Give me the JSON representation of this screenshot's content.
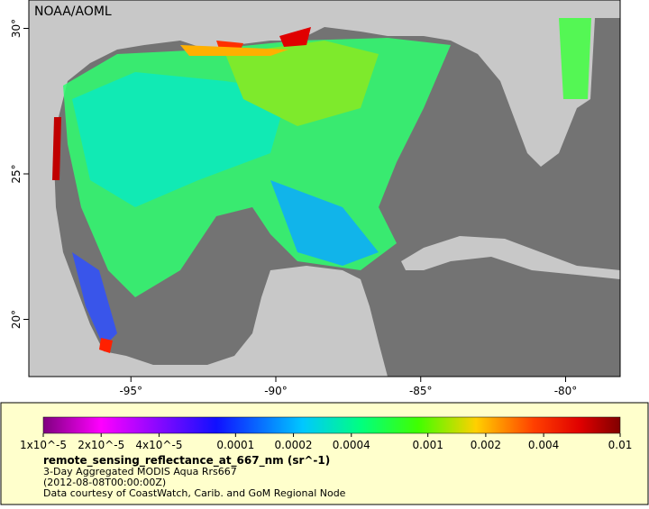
{
  "map": {
    "credit": "NOAA/AOML",
    "lat_ticks": [
      {
        "value": 30,
        "label": "30°"
      },
      {
        "value": 25,
        "label": "25°"
      },
      {
        "value": 20,
        "label": "20°"
      }
    ],
    "lon_ticks": [
      {
        "value": -95,
        "label": "-95°"
      },
      {
        "value": -90,
        "label": "-90°"
      },
      {
        "value": -85,
        "label": "-85°"
      },
      {
        "value": -80,
        "label": "-80°"
      }
    ]
  },
  "legend": {
    "ticks": [
      {
        "value": 1e-05,
        "label": "1x10^-5"
      },
      {
        "value": 2e-05,
        "label": "2x10^-5"
      },
      {
        "value": 4e-05,
        "label": "4x10^-5"
      },
      {
        "value": 0.0001,
        "label": "0.0001"
      },
      {
        "value": 0.0002,
        "label": "0.0002"
      },
      {
        "value": 0.0004,
        "label": "0.0004"
      },
      {
        "value": 0.001,
        "label": "0.001"
      },
      {
        "value": 0.002,
        "label": "0.002"
      },
      {
        "value": 0.004,
        "label": "0.004"
      },
      {
        "value": 0.01,
        "label": "0.01"
      }
    ],
    "title": "remote_sensing_reflectance_at_667_nm (sr^-1)",
    "lines": [
      "3-Day Aggregated MODIS Aqua Rrs667",
      "(2012-08-08T00:00:00Z)",
      "Data courtesy of CoastWatch, Carib. and GoM Regional Node"
    ]
  }
}
